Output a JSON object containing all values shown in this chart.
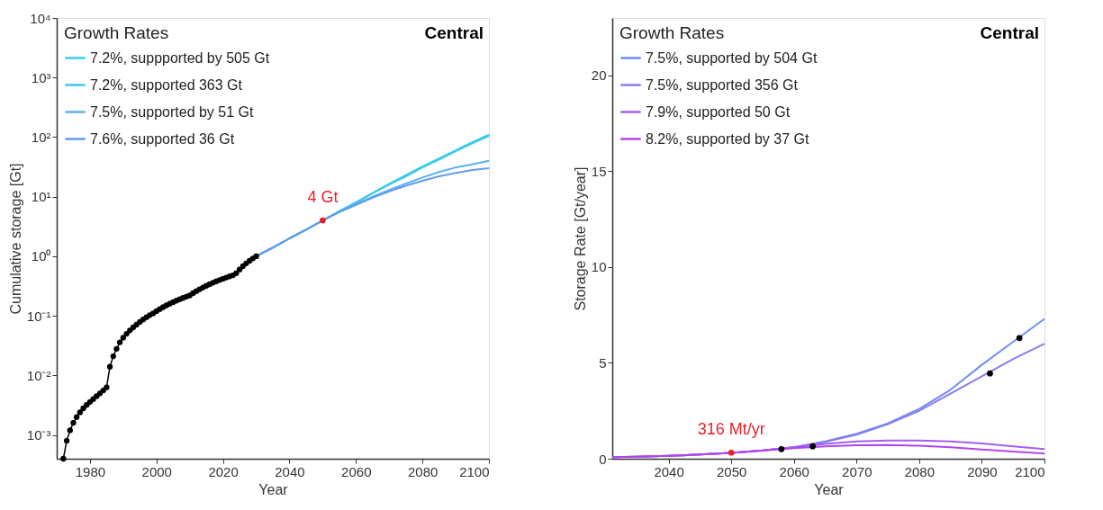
{
  "chart_data": [
    {
      "type": "line",
      "xlabel": "Year",
      "ylabel": "Cumulative storage [Gt]",
      "legend_title": "Growth Rates",
      "legend": "top left",
      "grid": false,
      "log": "y",
      "xlim": [
        1970,
        2100
      ],
      "xticks": [
        1980,
        2000,
        2020,
        2040,
        2060,
        2080,
        2100
      ],
      "ylim": [
        0.0004,
        10000
      ],
      "yticks": [
        {
          "value": 0.001,
          "label": "10⁻³"
        },
        {
          "value": 0.01,
          "label": "10⁻²"
        },
        {
          "value": 0.1,
          "label": "10⁻¹"
        },
        {
          "value": 1,
          "label": "10⁰"
        },
        {
          "value": 10,
          "label": "10¹"
        },
        {
          "value": 100,
          "label": "10²"
        },
        {
          "value": 1000,
          "label": "10³"
        },
        {
          "value": 10000,
          "label": "10⁴"
        }
      ],
      "annotations": [
        "Central",
        {
          "text": "4 Gt",
          "x": 2050,
          "y": 4
        }
      ],
      "series": [
        {
          "name": "7.2%, suppported by 505 Gt",
          "color": "#2ed6e8",
          "x": [
            2030,
            2035,
            2040,
            2045,
            2050,
            2055,
            2060,
            2065,
            2070,
            2075,
            2080,
            2085,
            2090,
            2095,
            2100
          ],
          "values": [
            1,
            1.4,
            2,
            2.8,
            4,
            5.7,
            8,
            11.5,
            16.5,
            23,
            32,
            44,
            60,
            82,
            110
          ]
        },
        {
          "name": "7.2%, supported 363 Gt",
          "color": "#3cc6ea",
          "x": [
            2030,
            2035,
            2040,
            2045,
            2050,
            2055,
            2060,
            2065,
            2070,
            2075,
            2080,
            2085,
            2090,
            2095,
            2100
          ],
          "values": [
            1,
            1.4,
            2,
            2.8,
            4,
            5.7,
            8,
            11.4,
            16,
            22,
            31,
            42,
            58,
            79,
            105
          ]
        },
        {
          "name": "7.5%, supported by 51 Gt",
          "color": "#5ab0ee",
          "x": [
            2030,
            2035,
            2040,
            2045,
            2050,
            2055,
            2060,
            2065,
            2070,
            2075,
            2080,
            2085,
            2090,
            2095,
            2100
          ],
          "values": [
            1,
            1.4,
            2,
            2.8,
            4,
            5.6,
            7.5,
            10,
            13,
            16.5,
            21,
            26,
            31,
            35,
            40
          ]
        },
        {
          "name": "7.6%, supported 36 Gt",
          "color": "#619ceb",
          "x": [
            2030,
            2035,
            2040,
            2045,
            2050,
            2055,
            2060,
            2065,
            2070,
            2075,
            2080,
            2085,
            2090,
            2095,
            2100
          ],
          "values": [
            1,
            1.4,
            2,
            2.8,
            4,
            5.5,
            7.3,
            9.6,
            12.3,
            15.2,
            18.5,
            22,
            25,
            28,
            30
          ]
        },
        {
          "color": "#000000",
          "marker": "circle",
          "x": [
            1972,
            1973,
            1974,
            1975,
            1976,
            1977,
            1978,
            1979,
            1980,
            1981,
            1982,
            1983,
            1984,
            1985,
            1986,
            1987,
            1988,
            1989,
            1990,
            1991,
            1992,
            1993,
            1994,
            1995,
            1996,
            1997,
            1998,
            1999,
            2000,
            2001,
            2002,
            2003,
            2004,
            2005,
            2006,
            2007,
            2008,
            2009,
            2010,
            2011,
            2012,
            2013,
            2014,
            2015,
            2016,
            2017,
            2018,
            2019,
            2020,
            2021,
            2022,
            2023,
            2024,
            2025,
            2026,
            2027,
            2028,
            2029,
            2030
          ],
          "values": [
            0.0004,
            0.0008,
            0.0012,
            0.0016,
            0.002,
            0.0024,
            0.0028,
            0.0032,
            0.0036,
            0.004,
            0.0045,
            0.005,
            0.0056,
            0.0063,
            0.014,
            0.021,
            0.028,
            0.036,
            0.043,
            0.05,
            0.057,
            0.064,
            0.071,
            0.079,
            0.087,
            0.095,
            0.103,
            0.11,
            0.12,
            0.13,
            0.14,
            0.15,
            0.16,
            0.17,
            0.18,
            0.19,
            0.2,
            0.21,
            0.22,
            0.24,
            0.26,
            0.28,
            0.3,
            0.32,
            0.34,
            0.36,
            0.38,
            0.4,
            0.42,
            0.44,
            0.46,
            0.48,
            0.52,
            0.6,
            0.68,
            0.76,
            0.84,
            0.92,
            1.0
          ]
        },
        {
          "type": "scatter",
          "color": "#e8202a",
          "x": [
            2050
          ],
          "values": [
            4
          ]
        }
      ]
    },
    {
      "type": "line",
      "xlabel": "Year",
      "ylabel": "Storage Rate [Gt/year]",
      "legend_title": "Growth Rates",
      "legend": "top left",
      "grid": false,
      "xlim": [
        2031,
        2100
      ],
      "xticks": [
        2040,
        2050,
        2060,
        2070,
        2080,
        2090,
        2100
      ],
      "ylim": [
        0,
        23
      ],
      "yticks": [
        0,
        5,
        10,
        15,
        20
      ],
      "annotations": [
        "Central",
        {
          "text": "316 Mt/yr",
          "x": 2050,
          "y": 0.316
        }
      ],
      "series": [
        {
          "name": "7.5%, supported by 504 Gt",
          "color": "#6f8ff0",
          "x": [
            2031,
            2035,
            2040,
            2045,
            2050,
            2055,
            2060,
            2065,
            2070,
            2075,
            2080,
            2085,
            2090,
            2095,
            2100
          ],
          "values": [
            0.08,
            0.11,
            0.15,
            0.22,
            0.3,
            0.43,
            0.6,
            0.9,
            1.3,
            1.85,
            2.6,
            3.6,
            4.9,
            6.1,
            7.3
          ]
        },
        {
          "name": "7.5%, supported 356 Gt",
          "color": "#8a7cef",
          "x": [
            2031,
            2035,
            2040,
            2045,
            2050,
            2055,
            2060,
            2065,
            2070,
            2075,
            2080,
            2085,
            2090,
            2095,
            2100
          ],
          "values": [
            0.08,
            0.11,
            0.15,
            0.22,
            0.3,
            0.43,
            0.6,
            0.88,
            1.25,
            1.8,
            2.5,
            3.4,
            4.3,
            5.2,
            6.0
          ]
        },
        {
          "name": "7.9%, supported 50 Gt",
          "color": "#a35ef0",
          "x": [
            2031,
            2035,
            2040,
            2045,
            2050,
            2055,
            2060,
            2065,
            2070,
            2075,
            2080,
            2085,
            2090,
            2095,
            2100
          ],
          "values": [
            0.08,
            0.11,
            0.15,
            0.22,
            0.3,
            0.43,
            0.6,
            0.78,
            0.9,
            0.95,
            0.95,
            0.9,
            0.8,
            0.65,
            0.5
          ]
        },
        {
          "name": "8.2%, supported by 37 Gt",
          "color": "#b244ee",
          "x": [
            2031,
            2035,
            2040,
            2045,
            2050,
            2055,
            2060,
            2065,
            2070,
            2075,
            2080,
            2085,
            2090,
            2095,
            2100
          ],
          "values": [
            0.08,
            0.11,
            0.15,
            0.22,
            0.3,
            0.42,
            0.55,
            0.65,
            0.7,
            0.72,
            0.68,
            0.6,
            0.48,
            0.37,
            0.27
          ]
        },
        {
          "type": "scatter",
          "color": "#000000",
          "x": [
            2058,
            2063,
            2091.3,
            2096
          ],
          "values": [
            0.5,
            0.65,
            4.45,
            6.3
          ]
        },
        {
          "type": "scatter",
          "color": "#e8202a",
          "x": [
            2050
          ],
          "values": [
            0.316
          ]
        }
      ]
    }
  ]
}
